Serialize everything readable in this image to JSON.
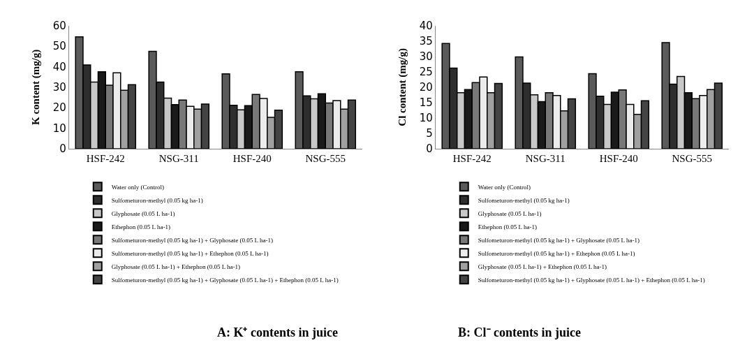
{
  "chart_data": [
    {
      "type": "bar",
      "title": "A: K⁺ contents in juice",
      "ylabel": "K content (mg/g)",
      "categories": [
        "HSF-242",
        "NSG-311",
        "HSF-240",
        "NSG-555"
      ],
      "ylim": [
        0,
        60
      ],
      "yticks": [
        0,
        10,
        20,
        30,
        40,
        50,
        60
      ],
      "grid": false,
      "legend": "bottom",
      "series": [
        {
          "name": "Water only (Control)",
          "color": "#5a5a5a",
          "values": [
            54.5,
            47.5,
            36.5,
            37.5
          ]
        },
        {
          "name": "Sulfometuron-methyl (0.05 kg ha-1)",
          "color": "#2e2e2e",
          "values": [
            40.8,
            32.5,
            21.2,
            25.8
          ]
        },
        {
          "name": "Glyphosate (0.05 L ha-1)",
          "color": "#c8c8c8",
          "values": [
            32.5,
            24.7,
            19,
            24.3
          ]
        },
        {
          "name": "Ethephon (0.05 L ha-1)",
          "color": "#1a1a1a",
          "values": [
            37.5,
            21.5,
            21,
            26.8
          ]
        },
        {
          "name": "Sulfometuron-methyl (0.05 kg ha-1) + Glyphosate (0.05 L ha-1)",
          "color": "#787878",
          "values": [
            31,
            23.7,
            26.5,
            22.3
          ]
        },
        {
          "name": "Sulfometuron-methyl (0.05 kg ha-1) + Ethephon (0.05 L ha-1)",
          "color": "#ececec",
          "values": [
            37,
            20.7,
            24.5,
            23.5
          ]
        },
        {
          "name": "Glyphosate (0.05 L ha-1) + Ethephon (0.05 L ha-1)",
          "color": "#a0a0a0",
          "values": [
            28.5,
            19.3,
            15.3,
            19.3
          ]
        },
        {
          "name": "Sulfometuron-methyl (0.05 kg ha-1) + Glyphosate (0.05 L ha-1) + Ethephon (0.05 L ha-1)",
          "color": "#444444",
          "values": [
            31.2,
            21.8,
            18.8,
            23.7
          ]
        }
      ]
    },
    {
      "type": "bar",
      "title": "B: Cl⁻ contents in juice",
      "ylabel": "Cl content (mg/g)",
      "categories": [
        "HSF-242",
        "NSG-311",
        "HSF-240",
        "NSG-555"
      ],
      "ylim": [
        0,
        40
      ],
      "yticks": [
        0,
        5,
        10,
        15,
        20,
        25,
        30,
        35,
        40
      ],
      "grid": false,
      "legend": "bottom",
      "series": [
        {
          "name": "Water only (Control)",
          "color": "#5a5a5a",
          "values": [
            34.2,
            29.8,
            24.4,
            34.5
          ]
        },
        {
          "name": "Sulfometuron-methyl (0.05 kg ha-1)",
          "color": "#2e2e2e",
          "values": [
            26.2,
            21.3,
            17.1,
            21
          ]
        },
        {
          "name": "Glyphosate (0.05 L ha-1)",
          "color": "#c8c8c8",
          "values": [
            18.2,
            17.5,
            14.4,
            23.5
          ]
        },
        {
          "name": "Ethephon (0.05 L ha-1)",
          "color": "#1a1a1a",
          "values": [
            19.2,
            15.3,
            18.4,
            18.2
          ]
        },
        {
          "name": "Sulfometuron-methyl (0.05 kg ha-1) + Glyphosate (0.05 L ha-1)",
          "color": "#787878",
          "values": [
            21.5,
            18.2,
            19.1,
            16.3
          ]
        },
        {
          "name": "Sulfometuron-methyl (0.05 kg ha-1) + Ethephon (0.05 L ha-1)",
          "color": "#ececec",
          "values": [
            23.3,
            17.3,
            14.4,
            17.3
          ]
        },
        {
          "name": "Glyphosate (0.05 L ha-1) + Ethephon (0.05 L ha-1)",
          "color": "#a0a0a0",
          "values": [
            18.2,
            12.3,
            11.2,
            19.2
          ]
        },
        {
          "name": "Sulfometuron-methyl (0.05 kg ha-1) + Glyphosate (0.05 L ha-1) + Ethephon (0.05 L ha-1)",
          "color": "#444444",
          "values": [
            21.2,
            16.2,
            15.6,
            21.3
          ]
        }
      ]
    }
  ]
}
